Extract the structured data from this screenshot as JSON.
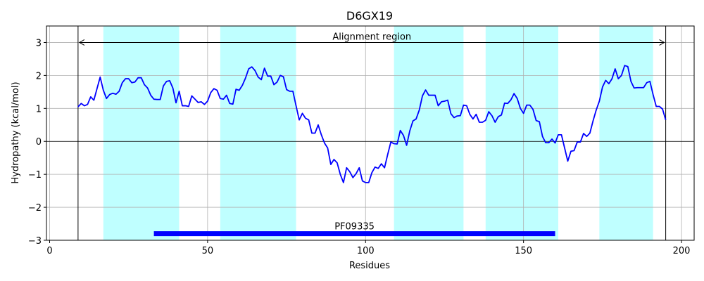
{
  "chart_data": {
    "type": "line",
    "title": "D6GX19",
    "xlabel": "Residues",
    "ylabel": "Hydropathy (kcal/mol)",
    "xlim": [
      -1,
      204
    ],
    "ylim": [
      -3,
      3.5
    ],
    "xticks": [
      0,
      50,
      100,
      150,
      200
    ],
    "yticks": [
      -3,
      -2,
      -1,
      0,
      1,
      2,
      3
    ],
    "grid": true,
    "transmembrane_regions": [
      [
        17,
        41
      ],
      [
        54,
        78
      ],
      [
        109,
        131
      ],
      [
        138,
        161
      ],
      [
        174,
        191
      ]
    ],
    "region_color": "#bfffff",
    "alignment_region": {
      "label": "Alignment region",
      "start": 9,
      "end": 195,
      "y": 3.0
    },
    "domain": {
      "label": "PF09335",
      "start": 33,
      "end": 160,
      "y": -2.8,
      "color": "#0000ff"
    },
    "series": [
      {
        "color": "#0000ff",
        "points": [
          [
            9,
            1.05
          ],
          [
            10,
            1.15
          ],
          [
            11,
            1.08
          ],
          [
            12,
            1.12
          ],
          [
            13,
            1.35
          ],
          [
            14,
            1.25
          ],
          [
            15,
            1.6
          ],
          [
            16,
            1.95
          ],
          [
            17,
            1.55
          ],
          [
            18,
            1.3
          ],
          [
            19,
            1.42
          ],
          [
            20,
            1.46
          ],
          [
            21,
            1.43
          ],
          [
            22,
            1.52
          ],
          [
            23,
            1.78
          ],
          [
            24,
            1.9
          ],
          [
            25,
            1.9
          ],
          [
            26,
            1.78
          ],
          [
            27,
            1.8
          ],
          [
            28,
            1.93
          ],
          [
            29,
            1.93
          ],
          [
            30,
            1.72
          ],
          [
            31,
            1.62
          ],
          [
            32,
            1.4
          ],
          [
            33,
            1.28
          ],
          [
            34,
            1.27
          ],
          [
            35,
            1.27
          ],
          [
            36,
            1.68
          ],
          [
            37,
            1.82
          ],
          [
            38,
            1.84
          ],
          [
            39,
            1.62
          ],
          [
            40,
            1.17
          ],
          [
            41,
            1.52
          ],
          [
            42,
            1.08
          ],
          [
            43,
            1.08
          ],
          [
            44,
            1.06
          ],
          [
            45,
            1.38
          ],
          [
            46,
            1.28
          ],
          [
            47,
            1.18
          ],
          [
            48,
            1.2
          ],
          [
            49,
            1.12
          ],
          [
            50,
            1.22
          ],
          [
            51,
            1.48
          ],
          [
            52,
            1.6
          ],
          [
            53,
            1.55
          ],
          [
            54,
            1.3
          ],
          [
            55,
            1.28
          ],
          [
            56,
            1.4
          ],
          [
            57,
            1.15
          ],
          [
            58,
            1.13
          ],
          [
            59,
            1.58
          ],
          [
            60,
            1.55
          ],
          [
            61,
            1.7
          ],
          [
            62,
            1.92
          ],
          [
            63,
            2.2
          ],
          [
            64,
            2.26
          ],
          [
            65,
            2.15
          ],
          [
            66,
            1.95
          ],
          [
            67,
            1.87
          ],
          [
            68,
            2.22
          ],
          [
            69,
            1.98
          ],
          [
            70,
            1.98
          ],
          [
            71,
            1.72
          ],
          [
            72,
            1.8
          ],
          [
            73,
            2.0
          ],
          [
            74,
            1.96
          ],
          [
            75,
            1.57
          ],
          [
            76,
            1.52
          ],
          [
            77,
            1.52
          ],
          [
            78,
            1.08
          ],
          [
            79,
            0.65
          ],
          [
            80,
            0.85
          ],
          [
            81,
            0.7
          ],
          [
            82,
            0.65
          ],
          [
            83,
            0.25
          ],
          [
            84,
            0.25
          ],
          [
            85,
            0.5
          ],
          [
            86,
            0.2
          ],
          [
            87,
            -0.05
          ],
          [
            88,
            -0.2
          ],
          [
            89,
            -0.7
          ],
          [
            90,
            -0.55
          ],
          [
            91,
            -0.65
          ],
          [
            92,
            -1.0
          ],
          [
            93,
            -1.25
          ],
          [
            94,
            -0.8
          ],
          [
            95,
            -0.92
          ],
          [
            96,
            -1.1
          ],
          [
            97,
            -0.98
          ],
          [
            98,
            -0.8
          ],
          [
            99,
            -1.2
          ],
          [
            100,
            -1.25
          ],
          [
            101,
            -1.25
          ],
          [
            102,
            -0.95
          ],
          [
            103,
            -0.78
          ],
          [
            104,
            -0.82
          ],
          [
            105,
            -0.68
          ],
          [
            106,
            -0.8
          ],
          [
            107,
            -0.4
          ],
          [
            108,
            -0.02
          ],
          [
            109,
            -0.07
          ],
          [
            110,
            -0.08
          ],
          [
            111,
            0.33
          ],
          [
            112,
            0.18
          ],
          [
            113,
            -0.12
          ],
          [
            114,
            0.32
          ],
          [
            115,
            0.62
          ],
          [
            116,
            0.68
          ],
          [
            117,
            0.95
          ],
          [
            118,
            1.38
          ],
          [
            119,
            1.56
          ],
          [
            120,
            1.4
          ],
          [
            121,
            1.4
          ],
          [
            122,
            1.4
          ],
          [
            123,
            1.08
          ],
          [
            124,
            1.2
          ],
          [
            125,
            1.22
          ],
          [
            126,
            1.25
          ],
          [
            127,
            0.84
          ],
          [
            128,
            0.72
          ],
          [
            129,
            0.77
          ],
          [
            130,
            0.78
          ],
          [
            131,
            1.1
          ],
          [
            132,
            1.08
          ],
          [
            133,
            0.82
          ],
          [
            134,
            0.68
          ],
          [
            135,
            0.82
          ],
          [
            136,
            0.58
          ],
          [
            137,
            0.58
          ],
          [
            138,
            0.64
          ],
          [
            139,
            0.9
          ],
          [
            140,
            0.78
          ],
          [
            141,
            0.58
          ],
          [
            142,
            0.75
          ],
          [
            143,
            0.8
          ],
          [
            144,
            1.16
          ],
          [
            145,
            1.15
          ],
          [
            146,
            1.26
          ],
          [
            147,
            1.45
          ],
          [
            148,
            1.3
          ],
          [
            149,
            1.0
          ],
          [
            150,
            0.85
          ],
          [
            151,
            1.1
          ],
          [
            152,
            1.1
          ],
          [
            153,
            0.97
          ],
          [
            154,
            0.63
          ],
          [
            155,
            0.6
          ],
          [
            156,
            0.15
          ],
          [
            157,
            -0.04
          ],
          [
            158,
            -0.04
          ],
          [
            159,
            0.07
          ],
          [
            160,
            -0.05
          ],
          [
            161,
            0.2
          ],
          [
            162,
            0.2
          ],
          [
            163,
            -0.2
          ],
          [
            164,
            -0.6
          ],
          [
            165,
            -0.3
          ],
          [
            166,
            -0.28
          ],
          [
            167,
            -0.02
          ],
          [
            168,
            -0.02
          ],
          [
            169,
            0.24
          ],
          [
            170,
            0.15
          ],
          [
            171,
            0.25
          ],
          [
            172,
            0.62
          ],
          [
            173,
            0.95
          ],
          [
            174,
            1.22
          ],
          [
            175,
            1.65
          ],
          [
            176,
            1.85
          ],
          [
            177,
            1.75
          ],
          [
            178,
            1.9
          ],
          [
            179,
            2.2
          ],
          [
            180,
            1.9
          ],
          [
            181,
            2.0
          ],
          [
            182,
            2.3
          ],
          [
            183,
            2.27
          ],
          [
            184,
            1.82
          ],
          [
            185,
            1.62
          ],
          [
            186,
            1.63
          ],
          [
            187,
            1.63
          ],
          [
            188,
            1.63
          ],
          [
            189,
            1.78
          ],
          [
            190,
            1.82
          ],
          [
            191,
            1.42
          ],
          [
            192,
            1.06
          ],
          [
            193,
            1.06
          ],
          [
            194,
            0.98
          ],
          [
            195,
            0.65
          ]
        ]
      }
    ]
  }
}
